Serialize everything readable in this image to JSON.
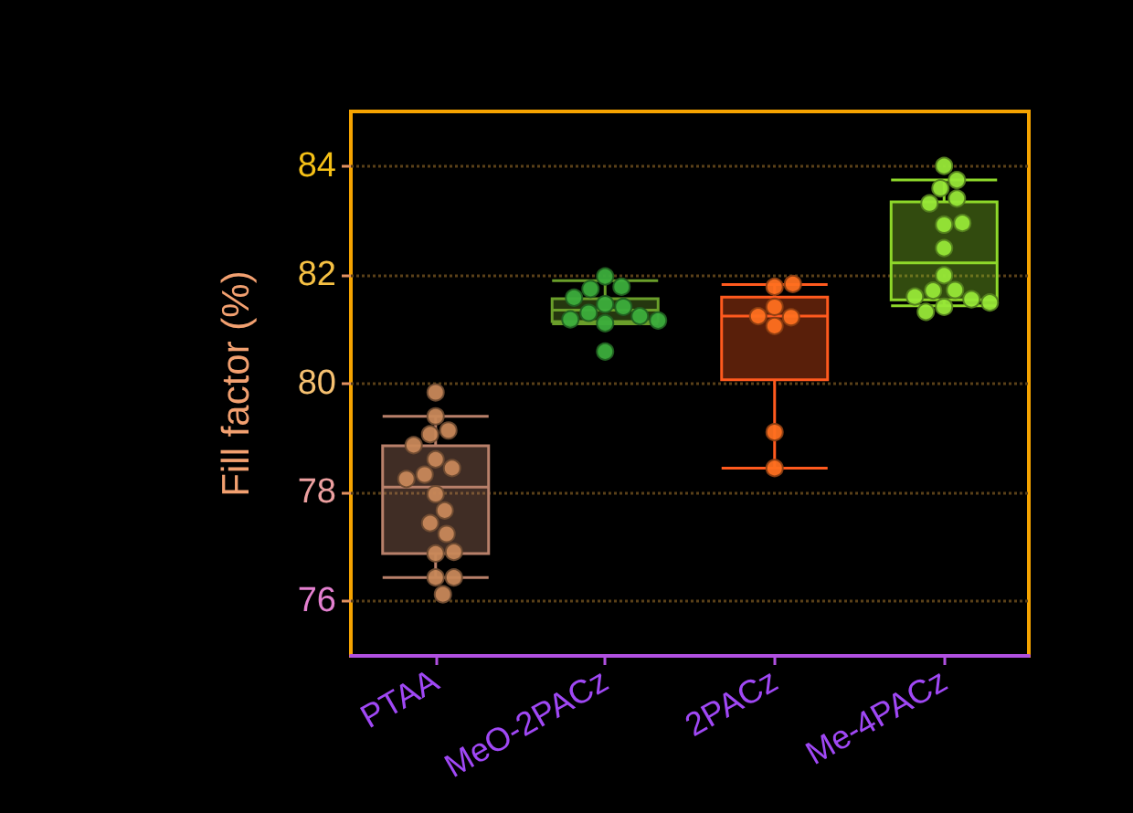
{
  "chart_data": {
    "type": "box",
    "ylabel": "Fill factor (%)",
    "categories": [
      "PTAA",
      "MeO-2PACz",
      "2PACz",
      "Me-4PACz"
    ],
    "boxes": [
      {
        "low": 76.44,
        "q1": 76.88,
        "median": 78.1,
        "q3": 78.86,
        "high": 79.4
      },
      {
        "low": 81.1,
        "q1": 81.14,
        "median": 81.35,
        "q3": 81.56,
        "high": 81.89
      },
      {
        "low": 78.45,
        "q1": 80.07,
        "median": 81.24,
        "q3": 81.59,
        "high": 81.82
      },
      {
        "low": 81.43,
        "q1": 81.54,
        "median": 82.22,
        "q3": 83.34,
        "high": 83.74
      }
    ],
    "colors": [
      "#b8806a",
      "#6a9e2a",
      "#ff5a1e",
      "#8ed82a"
    ],
    "series": [
      {
        "type": "scatter",
        "color": "#c8885a",
        "x": [
          "PTAA",
          "PTAA",
          "PTAA",
          "PTAA",
          "PTAA",
          "PTAA",
          "PTAA",
          "PTAA",
          "PTAA",
          "PTAA",
          "PTAA",
          "PTAA",
          "PTAA",
          "PTAA",
          "PTAA",
          "PTAA",
          "PTAA",
          "PTAA"
        ],
        "values": [
          79.84,
          79.4,
          79.14,
          79.07,
          78.87,
          78.61,
          78.45,
          78.33,
          78.25,
          77.97,
          77.67,
          77.44,
          77.24,
          76.88,
          76.91,
          76.44,
          76.44,
          76.13
        ]
      },
      {
        "type": "scatter",
        "color": "#3cae3c",
        "x": [
          "MeO-2PACz",
          "MeO-2PACz",
          "MeO-2PACz",
          "MeO-2PACz",
          "MeO-2PACz",
          "MeO-2PACz",
          "MeO-2PACz",
          "MeO-2PACz",
          "MeO-2PACz",
          "MeO-2PACz",
          "MeO-2PACz",
          "MeO-2PACz"
        ],
        "values": [
          81.97,
          81.78,
          81.74,
          81.58,
          81.46,
          81.41,
          81.3,
          81.24,
          81.18,
          81.11,
          81.16,
          80.59
        ]
      },
      {
        "type": "scatter",
        "color": "#ff7020",
        "x": [
          "2PACz",
          "2PACz",
          "2PACz",
          "2PACz",
          "2PACz",
          "2PACz",
          "2PACz",
          "2PACz"
        ],
        "values": [
          81.78,
          81.83,
          81.41,
          81.22,
          81.06,
          81.24,
          79.11,
          78.45
        ]
      },
      {
        "type": "scatter",
        "color": "#98e838",
        "x": [
          "Me-4PACz",
          "Me-4PACz",
          "Me-4PACz",
          "Me-4PACz",
          "Me-4PACz",
          "Me-4PACz",
          "Me-4PACz",
          "Me-4PACz",
          "Me-4PACz",
          "Me-4PACz",
          "Me-4PACz",
          "Me-4PACz",
          "Me-4PACz",
          "Me-4PACz",
          "Me-4PACz",
          "Me-4PACz"
        ],
        "values": [
          84.0,
          83.74,
          83.59,
          83.4,
          83.31,
          82.92,
          82.95,
          82.49,
          81.99,
          81.72,
          81.71,
          81.55,
          81.6,
          81.41,
          81.49,
          81.32
        ]
      }
    ],
    "ylim": [
      75,
      85
    ],
    "yticks": [
      76,
      78,
      80,
      82,
      84
    ],
    "grid": "y",
    "marker": "circle"
  }
}
